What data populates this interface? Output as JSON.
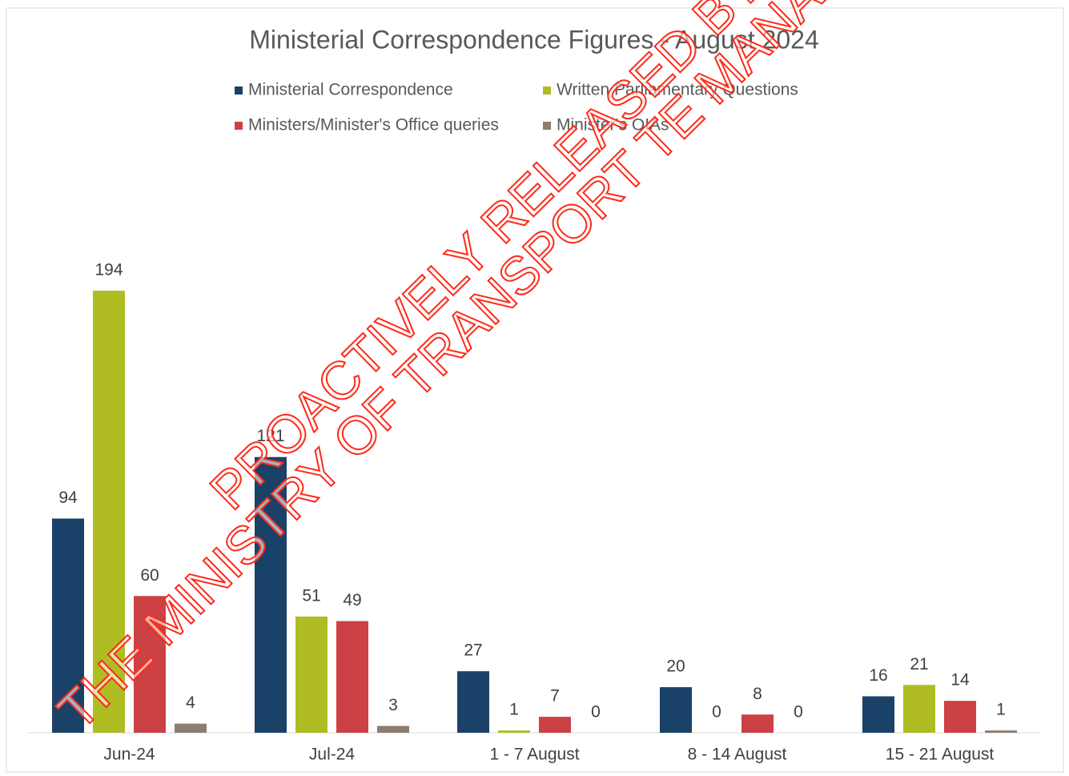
{
  "chart_data": {
    "type": "bar",
    "title": "Ministerial Correspondence Figures - August 2024",
    "categories": [
      "Jun-24",
      "Jul-24",
      "1 - 7 August",
      "8 - 14 August",
      "15 - 21 August"
    ],
    "series": [
      {
        "name": "Ministerial Correspondence",
        "color": "#1a4168",
        "values": [
          94,
          121,
          27,
          20,
          16
        ]
      },
      {
        "name": "Written Parliamentary Questions",
        "color": "#afbd22",
        "values": [
          194,
          51,
          1,
          0,
          21
        ]
      },
      {
        "name": "Ministers/Minister's Office queries",
        "color": "#cc4143",
        "values": [
          60,
          49,
          7,
          8,
          14
        ]
      },
      {
        "name": "Minister's OIAs",
        "color": "#8b7d70",
        "values": [
          4,
          3,
          0,
          0,
          1
        ]
      }
    ],
    "ylim": [
      0,
      220
    ],
    "annotations": [
      "PROACTIVELY RELEASED BY",
      "THE MINISTRY OF TRANSPORT TE MANA"
    ]
  }
}
